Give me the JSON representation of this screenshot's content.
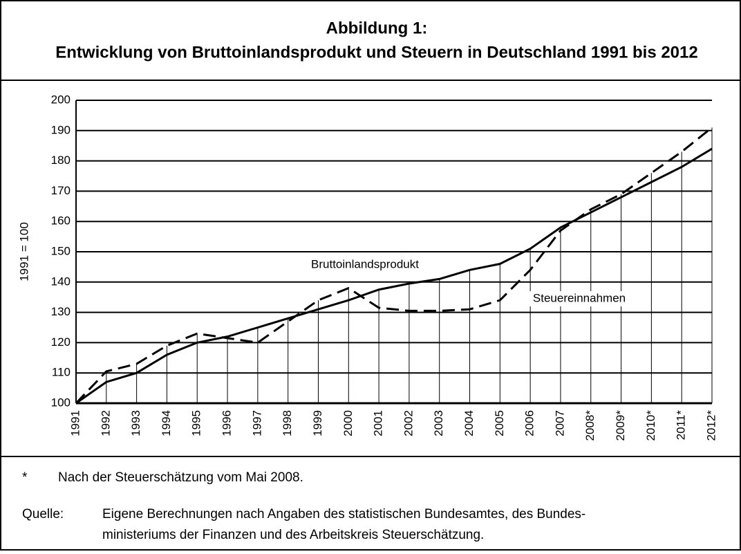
{
  "chart_data": {
    "type": "line",
    "title": "Abbildung 1:",
    "subtitle": "Entwicklung von Bruttoinlandsprodukt und Steuern in Deutschland 1991 bis 2012",
    "y_label": "1991 = 100",
    "categories": [
      "1991",
      "1992",
      "1993",
      "1994",
      "1995",
      "1996",
      "1997",
      "1998",
      "1999",
      "2000",
      "2001",
      "2002",
      "2003",
      "2004",
      "2005",
      "2006",
      "2007",
      "2008*",
      "2009*",
      "2010*",
      "2011*",
      "2012*"
    ],
    "series": [
      {
        "name": "Bruttoinlandsprodukt",
        "color": "#000000",
        "line_style": "solid",
        "values": [
          100,
          107,
          110,
          116,
          120,
          122,
          125,
          128,
          131,
          134,
          137.5,
          139.5,
          141,
          144,
          146,
          151,
          158,
          163,
          168,
          173,
          178,
          184
        ]
      },
      {
        "name": "Steuereinnahmen",
        "color": "#000000",
        "line_style": "dashed",
        "values": [
          100,
          110.5,
          113,
          119,
          123,
          121.5,
          120,
          127,
          134,
          138,
          131.5,
          130.5,
          130.5,
          131,
          134,
          144,
          157,
          164,
          169,
          176,
          183,
          191
        ]
      }
    ],
    "ylim": [
      100,
      200
    ],
    "yticks": [
      100,
      110,
      120,
      130,
      140,
      150,
      160,
      170,
      180,
      190,
      200
    ],
    "grid": true,
    "drop_lines": true,
    "footnote": {
      "mark": "*",
      "text": "Nach der Steuerschätzung vom Mai 2008."
    },
    "source": {
      "label": "Quelle:",
      "lines": [
        "Eigene Berechnungen nach Angaben des statistischen Bundesamtes, des Bundes-",
        "ministeriums der Finanzen und des Arbeitskreis Steuerschätzung."
      ]
    }
  }
}
